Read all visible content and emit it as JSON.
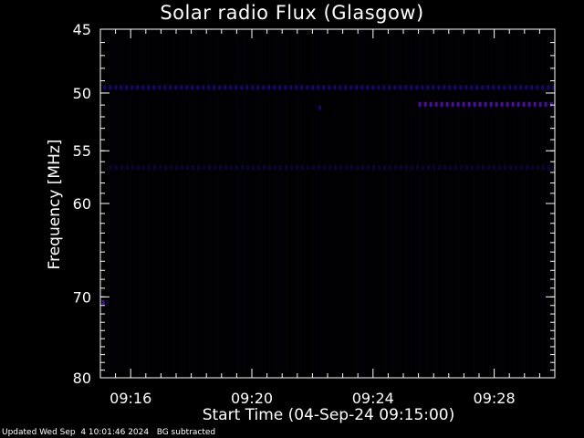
{
  "chart_data": {
    "type": "heatmap",
    "title": "Solar radio Flux (Glasgow)",
    "ylabel": "Frequency [MHz]",
    "xlabel": "Start Time (04-Sep-24 09:15:00)",
    "x_axis": {
      "range_minutes_after_0915": [
        0,
        15
      ],
      "ticks": [
        {
          "label": "09:16",
          "value": 1
        },
        {
          "label": "09:20",
          "value": 5
        },
        {
          "label": "09:24",
          "value": 9
        },
        {
          "label": "09:28",
          "value": 13
        }
      ]
    },
    "y_axis": {
      "range_mhz": [
        45,
        80
      ],
      "ticks": [
        {
          "label": "45",
          "value": 45
        },
        {
          "label": "50",
          "value": 50
        },
        {
          "label": "55",
          "value": 55
        },
        {
          "label": "60",
          "value": 60
        },
        {
          "label": "70",
          "value": 70
        },
        {
          "label": "80",
          "value": 80
        }
      ]
    },
    "features": [
      {
        "name": "band-49-5",
        "freq_mhz": 49.5,
        "from_min": 0.1,
        "to_min": 15,
        "intensity": 0.55
      },
      {
        "name": "band-51",
        "freq_mhz": 50.9,
        "from_min": 10.5,
        "to_min": 15,
        "intensity": 0.75
      },
      {
        "name": "band-56-5",
        "freq_mhz": 56.5,
        "from_min": 0.3,
        "to_min": 15,
        "intensity": 0.25
      },
      {
        "name": "spot-70-6",
        "freq_mhz": 70.6,
        "from_min": 0.05,
        "to_min": 0.25,
        "intensity": 0.7
      },
      {
        "name": "spot-51-2",
        "freq_mhz": 51.2,
        "from_min": 7.2,
        "to_min": 7.3,
        "intensity": 0.5
      }
    ],
    "colors": {
      "background": "#000000",
      "low": "#0a0a30",
      "mid": "#2a0ad8",
      "high": "#6a10d8",
      "axis": "#ffffff"
    }
  },
  "footer": {
    "updated": "Updated Wed Sep  4 10:01:46 2024",
    "bg_note": "BG subtracted"
  }
}
